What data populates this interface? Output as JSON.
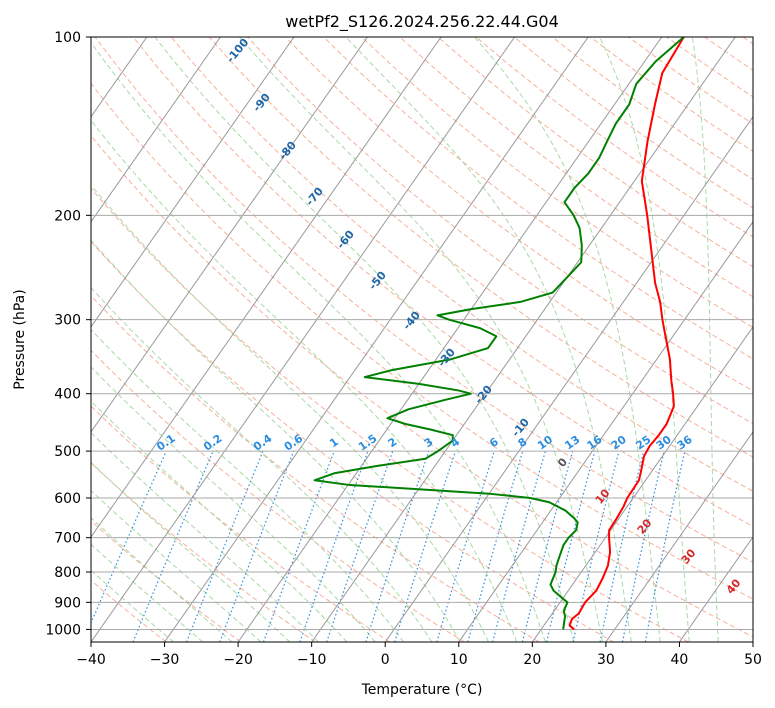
{
  "chart_data": {
    "type": "line",
    "title": "wetPf2_S126.2024.256.22.44.G04",
    "xlabel": "Temperature (°C)",
    "ylabel": "Pressure (hPa)",
    "xlim": [
      -40,
      50
    ],
    "ylim": [
      1050,
      100
    ],
    "y_scale": "log",
    "skew": true,
    "grid": true,
    "x_ticks": [
      -40,
      -30,
      -20,
      -10,
      0,
      10,
      20,
      30,
      40,
      50
    ],
    "y_ticks": [
      100,
      200,
      300,
      400,
      500,
      600,
      700,
      800,
      900,
      1000
    ],
    "series": [
      {
        "color": "#ff0000",
        "points": [
          [
            1000,
            24.5
          ],
          [
            985,
            23.5
          ],
          [
            960,
            23.2
          ],
          [
            940,
            23.6
          ],
          [
            900,
            23.4
          ],
          [
            860,
            23.8
          ],
          [
            820,
            23.5
          ],
          [
            780,
            23.0
          ],
          [
            740,
            22.0
          ],
          [
            700,
            20.5
          ],
          [
            680,
            19.8
          ],
          [
            650,
            19.7
          ],
          [
            620,
            19.5
          ],
          [
            600,
            19.2
          ],
          [
            560,
            19.1
          ],
          [
            540,
            18.5
          ],
          [
            510,
            17.5
          ],
          [
            490,
            17.3
          ],
          [
            470,
            17.5
          ],
          [
            450,
            17.5
          ],
          [
            420,
            16.8
          ],
          [
            400,
            15.5
          ],
          [
            380,
            14.0
          ],
          [
            350,
            11.8
          ],
          [
            320,
            9.0
          ],
          [
            300,
            7.0
          ],
          [
            280,
            5.0
          ],
          [
            260,
            2.5
          ],
          [
            230,
            -1.0
          ],
          [
            200,
            -5.0
          ],
          [
            175,
            -9.0
          ],
          [
            150,
            -12.0
          ],
          [
            130,
            -14.5
          ],
          [
            115,
            -16.5
          ],
          [
            100,
            -17.0
          ]
        ]
      },
      {
        "color": "#008000",
        "points": [
          [
            1000,
            23.0
          ],
          [
            975,
            22.5
          ],
          [
            950,
            22.0
          ],
          [
            930,
            21.3
          ],
          [
            900,
            21.0
          ],
          [
            880,
            19.5
          ],
          [
            860,
            18.0
          ],
          [
            840,
            17.0
          ],
          [
            800,
            16.5
          ],
          [
            780,
            16.0
          ],
          [
            750,
            15.5
          ],
          [
            720,
            15.0
          ],
          [
            700,
            15.0
          ],
          [
            680,
            15.3
          ],
          [
            660,
            14.8
          ],
          [
            650,
            14.0
          ],
          [
            630,
            12.0
          ],
          [
            610,
            9.0
          ],
          [
            600,
            6.0
          ],
          [
            590,
            0.0
          ],
          [
            580,
            -10.0
          ],
          [
            570,
            -20.0
          ],
          [
            560,
            -25.0
          ],
          [
            545,
            -23.0
          ],
          [
            530,
            -18.0
          ],
          [
            515,
            -12.0
          ],
          [
            500,
            -11.0
          ],
          [
            490,
            -10.5
          ],
          [
            480,
            -10.0
          ],
          [
            470,
            -10.5
          ],
          [
            460,
            -14.0
          ],
          [
            450,
            -18.0
          ],
          [
            440,
            -21.0
          ],
          [
            425,
            -19.0
          ],
          [
            410,
            -15.0
          ],
          [
            400,
            -12.0
          ],
          [
            395,
            -14.0
          ],
          [
            385,
            -20.0
          ],
          [
            375,
            -28.0
          ],
          [
            365,
            -25.0
          ],
          [
            350,
            -18.0
          ],
          [
            335,
            -14.0
          ],
          [
            320,
            -14.0
          ],
          [
            310,
            -17.0
          ],
          [
            300,
            -22.0
          ],
          [
            295,
            -24.0
          ],
          [
            288,
            -20.0
          ],
          [
            280,
            -14.0
          ],
          [
            270,
            -10.5
          ],
          [
            255,
            -10.0
          ],
          [
            240,
            -9.5
          ],
          [
            225,
            -11.0
          ],
          [
            210,
            -13.0
          ],
          [
            200,
            -15.0
          ],
          [
            190,
            -17.5
          ],
          [
            180,
            -17.5
          ],
          [
            170,
            -17.0
          ],
          [
            160,
            -17.0
          ],
          [
            150,
            -17.5
          ],
          [
            140,
            -18.0
          ],
          [
            130,
            -18.0
          ],
          [
            120,
            -19.0
          ],
          [
            110,
            -18.5
          ],
          [
            100,
            -17.0
          ]
        ]
      }
    ],
    "dry_adiabat_labels": [
      "-100",
      "-90",
      "-80",
      "-70",
      "-60",
      "-50",
      "-40",
      "-30",
      "-20",
      "-10"
    ],
    "moist_adiabat_labels": [
      "0",
      "10",
      "20",
      "30",
      "40"
    ],
    "mixing_ratio_labels": [
      "0.1",
      "0.2",
      "0.4",
      "0.6",
      "1",
      "1.5",
      "2",
      "3",
      "4",
      "6",
      "8",
      "10",
      "13",
      "16",
      "20",
      "25",
      "30",
      "36"
    ]
  }
}
